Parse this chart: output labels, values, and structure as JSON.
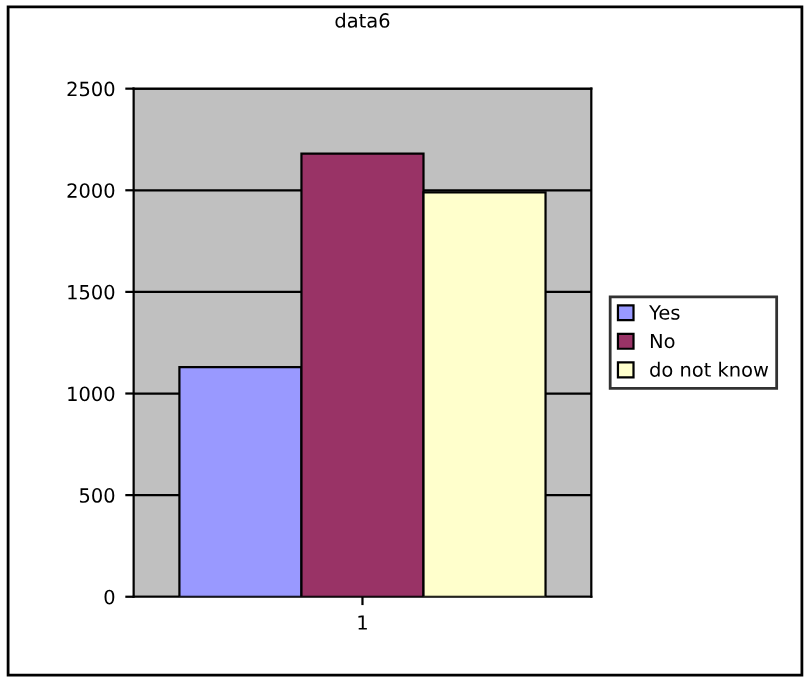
{
  "chart_data": {
    "type": "bar",
    "title": "data6",
    "categories": [
      "1"
    ],
    "series": [
      {
        "name": "Yes",
        "color": "#9999ff",
        "values": [
          1130
        ]
      },
      {
        "name": "No",
        "color": "#993366",
        "values": [
          2180
        ]
      },
      {
        "name": "do not know",
        "color": "#ffffcc",
        "values": [
          1990
        ]
      }
    ],
    "ylim": [
      0,
      2500
    ],
    "yticks": [
      0,
      500,
      1000,
      1500,
      2000,
      2500
    ],
    "grid": "y",
    "legend": "right"
  }
}
